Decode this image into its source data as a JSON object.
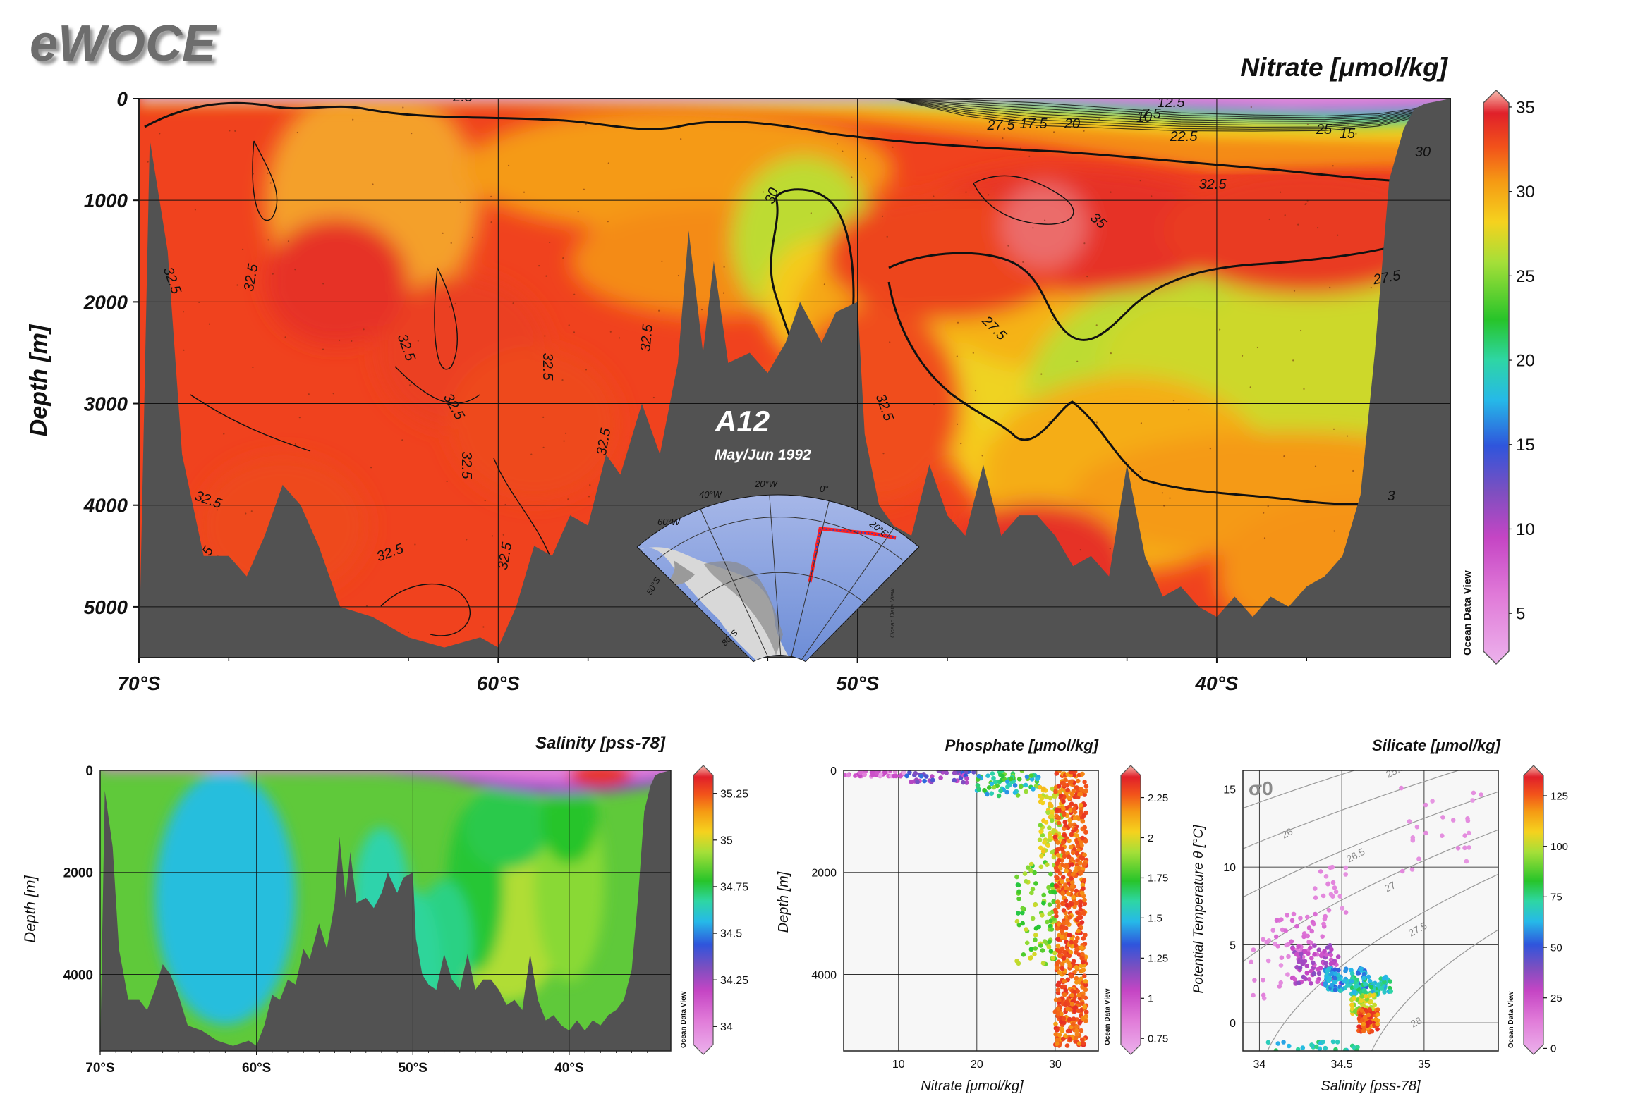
{
  "brand": "eWOCE",
  "watermark": "Ocean Data View",
  "colors": {
    "topography": "#525252",
    "scale": [
      [
        0,
        "#ecb2ec"
      ],
      [
        0.12,
        "#e07ad8"
      ],
      [
        0.22,
        "#c545c4"
      ],
      [
        0.3,
        "#7d4fc0"
      ],
      [
        0.38,
        "#2f55dc"
      ],
      [
        0.46,
        "#26b9e8"
      ],
      [
        0.53,
        "#2ed6a4"
      ],
      [
        0.6,
        "#27c42a"
      ],
      [
        0.7,
        "#a5df38"
      ],
      [
        0.77,
        "#f5d21e"
      ],
      [
        0.84,
        "#f59b14"
      ],
      [
        0.9,
        "#f2531a"
      ],
      [
        0.96,
        "#e0202a"
      ],
      [
        1,
        "#f7bdb0"
      ]
    ]
  },
  "chart_data": [
    {
      "type": "heatmap",
      "title": "Nitrate [μmol/kg]",
      "ylabel": "Depth [m]",
      "x_tick_labels": [
        "70°S",
        "60°S",
        "50°S",
        "40°S"
      ],
      "x_ticks": [
        70,
        60,
        50,
        40
      ],
      "xlim": [
        70,
        33.5
      ],
      "y_tick_labels": [
        "0",
        "1000",
        "2000",
        "3000",
        "4000",
        "5000"
      ],
      "y_ticks": [
        0,
        1000,
        2000,
        3000,
        4000,
        5000
      ],
      "ylim": [
        0,
        5500
      ],
      "colorbar_ticks": [
        "35",
        "30",
        "25",
        "20",
        "15",
        "10",
        "5"
      ],
      "colorbar_values": [
        35,
        30,
        25,
        20,
        15,
        10,
        5
      ],
      "colorbar_range": [
        2,
        36
      ],
      "contour_labels": [
        "2.5",
        "12.5",
        "7.5",
        "10",
        "17.5",
        "20",
        "22.5",
        "25",
        "15",
        "27.5",
        "30",
        "32.5",
        "32.5",
        "32.5",
        "32.5",
        "32.5",
        "32.5",
        "32.5",
        "32.5",
        "32.5",
        "32.5",
        "32.5",
        "32.5",
        "35",
        "27.5",
        "30",
        "27.5",
        "3",
        "32.5",
        "5"
      ],
      "inset": {
        "title": "A12",
        "subtitle": "May/Jun 1992",
        "lon_labels": [
          "60°W",
          "40°W",
          "20°W",
          "0°",
          "20°E"
        ],
        "lat_labels": [
          "50°S",
          "80°S"
        ]
      },
      "bathymetry_depth_m": [
        [
          70,
          5500
        ],
        [
          69.7,
          400
        ],
        [
          69.2,
          1500
        ],
        [
          68.8,
          3500
        ],
        [
          68.2,
          4500
        ],
        [
          67.5,
          4500
        ],
        [
          67,
          4700
        ],
        [
          66.5,
          4300
        ],
        [
          66,
          3800
        ],
        [
          65.5,
          4000
        ],
        [
          65,
          4400
        ],
        [
          64.4,
          5000
        ],
        [
          63.5,
          5100
        ],
        [
          62.5,
          5300
        ],
        [
          61.5,
          5400
        ],
        [
          60.5,
          5300
        ],
        [
          60,
          5400
        ],
        [
          59.5,
          5000
        ],
        [
          59,
          4400
        ],
        [
          58.5,
          4500
        ],
        [
          58,
          4100
        ],
        [
          57.5,
          4200
        ],
        [
          57,
          3500
        ],
        [
          56.6,
          3700
        ],
        [
          56,
          3000
        ],
        [
          55.5,
          3500
        ],
        [
          55,
          2600
        ],
        [
          54.7,
          1300
        ],
        [
          54.3,
          2500
        ],
        [
          54,
          1600
        ],
        [
          53.6,
          2600
        ],
        [
          53,
          2500
        ],
        [
          52.5,
          2700
        ],
        [
          52,
          2400
        ],
        [
          51.6,
          2000
        ],
        [
          51,
          2400
        ],
        [
          50.6,
          2100
        ],
        [
          50,
          2000
        ],
        [
          49.8,
          3300
        ],
        [
          49.4,
          4000
        ],
        [
          49,
          4200
        ],
        [
          48.5,
          4300
        ],
        [
          48,
          3600
        ],
        [
          47.5,
          4100
        ],
        [
          47,
          4300
        ],
        [
          46.5,
          3600
        ],
        [
          46,
          4300
        ],
        [
          45.5,
          4100
        ],
        [
          45,
          4100
        ],
        [
          44.5,
          4300
        ],
        [
          44,
          4600
        ],
        [
          43.5,
          4500
        ],
        [
          43,
          4700
        ],
        [
          42.5,
          3600
        ],
        [
          42,
          4500
        ],
        [
          41.5,
          4900
        ],
        [
          41,
          4800
        ],
        [
          40.5,
          5000
        ],
        [
          40,
          5100
        ],
        [
          39.5,
          4900
        ],
        [
          39,
          5100
        ],
        [
          38.5,
          4900
        ],
        [
          38,
          5000
        ],
        [
          37.5,
          4800
        ],
        [
          37,
          4700
        ],
        [
          36.5,
          4500
        ],
        [
          36,
          3900
        ],
        [
          35.6,
          2500
        ],
        [
          35.2,
          800
        ],
        [
          34.8,
          300
        ],
        [
          34.5,
          100
        ],
        [
          34.2,
          50
        ],
        [
          33.5,
          0
        ],
        [
          33.5,
          5500
        ]
      ]
    },
    {
      "type": "heatmap",
      "title": "Salinity [pss-78]",
      "ylabel": "Depth [m]",
      "x_tick_labels": [
        "70°S",
        "60°S",
        "50°S",
        "40°S"
      ],
      "x_ticks": [
        70,
        60,
        50,
        40
      ],
      "xlim": [
        70,
        33.5
      ],
      "y_tick_labels": [
        "0",
        "2000",
        "4000"
      ],
      "y_ticks": [
        0,
        2000,
        4000
      ],
      "ylim": [
        0,
        5500
      ],
      "colorbar_ticks": [
        "35.25",
        "35",
        "34.75",
        "34.5",
        "34.25",
        "34"
      ],
      "colorbar_values": [
        35.25,
        35,
        34.75,
        34.5,
        34.25,
        34
      ],
      "colorbar_range": [
        33.85,
        35.4
      ]
    },
    {
      "type": "scatter",
      "title": "Phosphate [μmol/kg]",
      "xlabel": "Nitrate [μmol/kg]",
      "ylabel": "Depth [m]",
      "x_tick_labels": [
        "10",
        "20",
        "30"
      ],
      "x_ticks": [
        10,
        20,
        30
      ],
      "xlim": [
        3,
        35.5
      ],
      "y_tick_labels": [
        "0",
        "2000",
        "4000"
      ],
      "y_ticks": [
        0,
        2000,
        4000
      ],
      "ylim": [
        0,
        5500
      ],
      "colorbar_ticks": [
        "2.25",
        "2",
        "1.75",
        "1.5",
        "1.25",
        "1",
        "0.75"
      ],
      "colorbar_values": [
        2.25,
        2,
        1.75,
        1.5,
        1.25,
        1,
        0.75
      ],
      "colorbar_range": [
        0.65,
        2.45
      ],
      "clusters": [
        {
          "nitrate": [
            3,
            11
          ],
          "depth": [
            0,
            120
          ],
          "phosphate": [
            0.7,
            1.05
          ],
          "n": 40
        },
        {
          "nitrate": [
            11,
            20
          ],
          "depth": [
            0,
            250
          ],
          "phosphate": [
            1.0,
            1.4
          ],
          "n": 45
        },
        {
          "nitrate": [
            20,
            28
          ],
          "depth": [
            0,
            500
          ],
          "phosphate": [
            1.4,
            1.9
          ],
          "n": 70
        },
        {
          "nitrate": [
            25,
            30
          ],
          "depth": [
            1800,
            3800
          ],
          "phosphate": [
            1.7,
            2.0
          ],
          "n": 90
        },
        {
          "nitrate": [
            28,
            31
          ],
          "depth": [
            300,
            1700
          ],
          "phosphate": [
            1.85,
            2.1
          ],
          "n": 90
        },
        {
          "nitrate": [
            30,
            34
          ],
          "depth": [
            0,
            5400
          ],
          "phosphate": [
            2.15,
            2.35
          ],
          "n": 650
        }
      ]
    },
    {
      "type": "scatter",
      "title": "Silicate [μmol/kg]",
      "xlabel": "Salinity [pss-78]",
      "ylabel": "Potential Temperature θ [°C]",
      "x_tick_labels": [
        "34",
        "34.5",
        "35"
      ],
      "x_ticks": [
        34,
        34.5,
        35
      ],
      "xlim": [
        33.9,
        35.45
      ],
      "y_tick_labels": [
        "0",
        "5",
        "10",
        "15"
      ],
      "y_ticks": [
        0,
        5,
        10,
        15
      ],
      "ylim": [
        -1.8,
        16.2
      ],
      "sigma_symbol": "σ0",
      "isopycnal_labels": [
        "25.5",
        "26",
        "26.5",
        "27",
        "27.5",
        "28"
      ],
      "colorbar_ticks": [
        "125",
        "100",
        "75",
        "50",
        "25",
        "0"
      ],
      "colorbar_values": [
        125,
        100,
        75,
        50,
        25,
        0
      ],
      "colorbar_range": [
        -3,
        140
      ],
      "clusters": [
        {
          "sal": [
            34.8,
            35.35
          ],
          "theta": [
            9.5,
            15.2
          ],
          "silicate": [
            5,
            10
          ],
          "n": 25
        },
        {
          "sal": [
            33.95,
            34.2
          ],
          "theta": [
            1.5,
            6
          ],
          "silicate": [
            5,
            12
          ],
          "n": 20
        },
        {
          "sal": [
            34.3,
            34.55
          ],
          "theta": [
            7,
            10
          ],
          "silicate": [
            5,
            12
          ],
          "n": 20
        },
        {
          "sal": [
            34.1,
            34.4
          ],
          "theta": [
            4,
            7
          ],
          "silicate": [
            12,
            20
          ],
          "n": 40
        },
        {
          "sal": [
            34.2,
            34.5
          ],
          "theta": [
            2.5,
            5
          ],
          "silicate": [
            20,
            40
          ],
          "n": 80
        },
        {
          "sal": [
            34.4,
            34.65
          ],
          "theta": [
            2,
            3.5
          ],
          "silicate": [
            50,
            70
          ],
          "n": 100
        },
        {
          "sal": [
            34.55,
            34.8
          ],
          "theta": [
            1.8,
            3
          ],
          "silicate": [
            60,
            80
          ],
          "n": 70
        },
        {
          "sal": [
            34.55,
            34.7
          ],
          "theta": [
            0.5,
            1.8
          ],
          "silicate": [
            90,
            110
          ],
          "n": 60
        },
        {
          "sal": [
            34.6,
            34.72
          ],
          "theta": [
            -0.6,
            0.9
          ],
          "silicate": [
            115,
            135
          ],
          "n": 90
        },
        {
          "sal": [
            34.05,
            34.65
          ],
          "theta": [
            -1.8,
            -1.2
          ],
          "silicate": [
            60,
            80
          ],
          "n": 25
        }
      ]
    }
  ]
}
